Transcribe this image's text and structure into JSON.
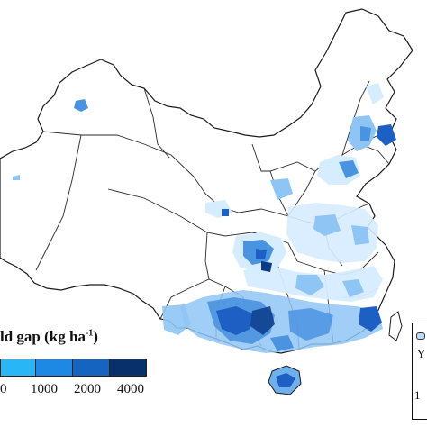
{
  "legend": {
    "title_main": "ld gap (kg ha",
    "title_sup": "-1",
    "title_close": ")",
    "colors": [
      "#29b6f6",
      "#1e88e5",
      "#1565c0",
      "#0d47a1",
      "#08306b"
    ],
    "tick_labels": [
      "0",
      "1000",
      "2000",
      "4000"
    ]
  },
  "inset": {
    "texts": [
      "Y",
      "1"
    ]
  },
  "map": {
    "background_color": "#ffffff",
    "boundary_color": "#1a1a1a",
    "yield_gap_colors": [
      "#d6ecff",
      "#8fc5f5",
      "#4a93e0",
      "#1d5fc2",
      "#0b3a8a"
    ]
  }
}
